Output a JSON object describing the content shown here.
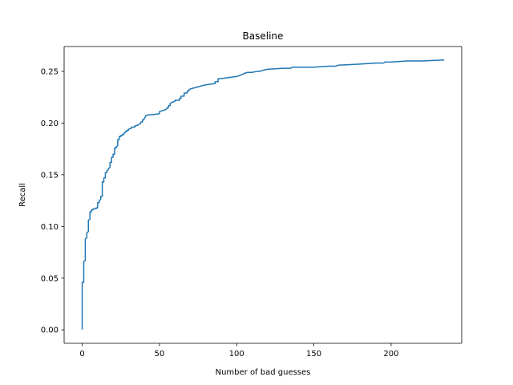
{
  "chart_data": {
    "type": "line",
    "title": "Baseline",
    "xlabel": "Number of bad guesses",
    "ylabel": "Recall",
    "xlim": [
      -11.7,
      245.7
    ],
    "ylim": [
      -0.013,
      0.274
    ],
    "xticks": [
      0,
      50,
      100,
      150,
      200
    ],
    "yticks": [
      0.0,
      0.05,
      0.1,
      0.15,
      0.2,
      0.25
    ],
    "xtick_labels": [
      "0",
      "50",
      "100",
      "150",
      "200"
    ],
    "ytick_labels": [
      "0.00",
      "0.05",
      "0.10",
      "0.15",
      "0.20",
      "0.25"
    ],
    "grid": false,
    "color": "#1f77b4",
    "series": [
      {
        "x": [
          0,
          0,
          1,
          1,
          2,
          2,
          3,
          3,
          4,
          4,
          5,
          5,
          6,
          6,
          7,
          7,
          8,
          8,
          9,
          9,
          10,
          10,
          11,
          11,
          12,
          12,
          13,
          13,
          14,
          14,
          15,
          15,
          16,
          16,
          17,
          17,
          18,
          18,
          19,
          19,
          20,
          20,
          21,
          21,
          22,
          22,
          23,
          23,
          24,
          24,
          25,
          25,
          26,
          26,
          27,
          27,
          28,
          28,
          29,
          29,
          30,
          30,
          32,
          32,
          34,
          34,
          36,
          36,
          37,
          37,
          38,
          38,
          39,
          39,
          40,
          40,
          41,
          41,
          43,
          45,
          50,
          50,
          52,
          54,
          55,
          55,
          56,
          56,
          57,
          57,
          58,
          58,
          60,
          60,
          63,
          63,
          64,
          64,
          66,
          66,
          68,
          68,
          69,
          69,
          70,
          75,
          80,
          85,
          86,
          86,
          88,
          88,
          90,
          95,
          100,
          102,
          105,
          107,
          110,
          113,
          115,
          117,
          120,
          130,
          135,
          136,
          150,
          160,
          164,
          166,
          180,
          190,
          195,
          196,
          200,
          210,
          220,
          234
        ],
        "y": [
          0.001,
          0.046,
          0.046,
          0.066,
          0.067,
          0.088,
          0.089,
          0.094,
          0.095,
          0.106,
          0.107,
          0.114,
          0.114,
          0.116,
          0.116,
          0.117,
          0.117,
          0.117,
          0.117,
          0.118,
          0.118,
          0.123,
          0.123,
          0.125,
          0.126,
          0.129,
          0.129,
          0.143,
          0.143,
          0.147,
          0.147,
          0.152,
          0.152,
          0.154,
          0.155,
          0.156,
          0.157,
          0.162,
          0.162,
          0.167,
          0.167,
          0.17,
          0.17,
          0.176,
          0.176,
          0.177,
          0.178,
          0.184,
          0.184,
          0.187,
          0.187,
          0.188,
          0.188,
          0.189,
          0.189,
          0.19,
          0.191,
          0.192,
          0.192,
          0.193,
          0.193,
          0.194,
          0.195,
          0.196,
          0.196,
          0.197,
          0.198,
          0.198,
          0.199,
          0.199,
          0.2,
          0.201,
          0.201,
          0.203,
          0.203,
          0.204,
          0.206,
          0.207,
          0.208,
          0.208,
          0.209,
          0.211,
          0.212,
          0.213,
          0.214,
          0.215,
          0.215,
          0.217,
          0.217,
          0.219,
          0.22,
          0.22,
          0.221,
          0.222,
          0.222,
          0.224,
          0.224,
          0.226,
          0.226,
          0.229,
          0.229,
          0.231,
          0.231,
          0.232,
          0.233,
          0.235,
          0.237,
          0.238,
          0.238,
          0.24,
          0.24,
          0.243,
          0.243,
          0.244,
          0.245,
          0.246,
          0.248,
          0.249,
          0.249,
          0.25,
          0.25,
          0.251,
          0.252,
          0.253,
          0.253,
          0.254,
          0.254,
          0.255,
          0.255,
          0.256,
          0.257,
          0.258,
          0.258,
          0.259,
          0.259,
          0.26,
          0.26,
          0.261
        ]
      }
    ]
  }
}
